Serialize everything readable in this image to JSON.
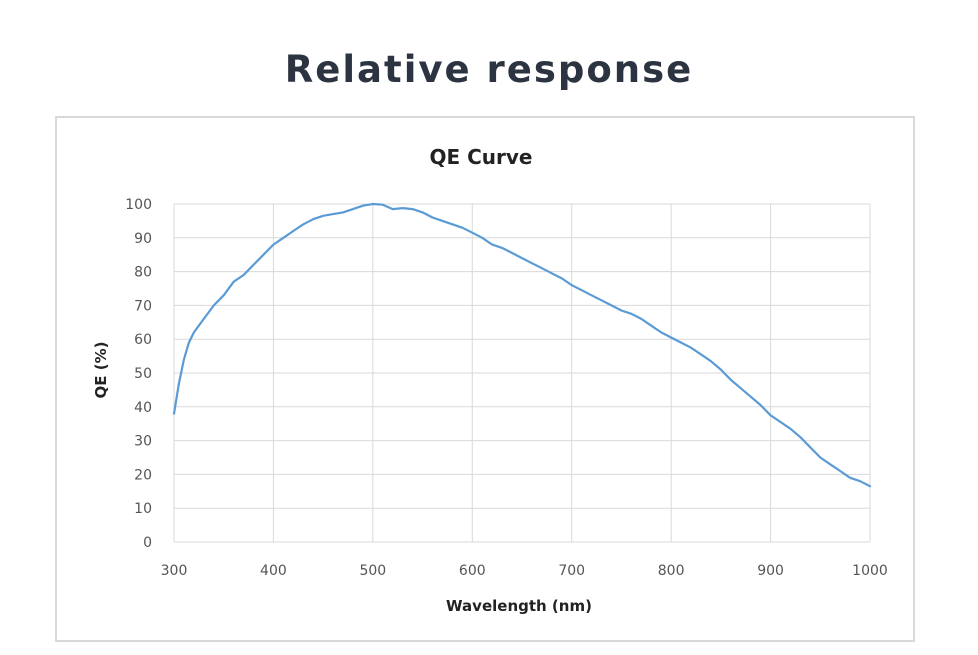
{
  "page": {
    "heading": "Relative response"
  },
  "chart_data": {
    "type": "line",
    "title": "QE Curve",
    "xlabel": "Wavelength (nm)",
    "ylabel": "QE (%)",
    "xlim": [
      300,
      1000
    ],
    "ylim": [
      0,
      100
    ],
    "xticks": [
      300,
      400,
      500,
      600,
      700,
      800,
      900,
      1000
    ],
    "yticks": [
      0,
      10,
      20,
      30,
      40,
      50,
      60,
      70,
      80,
      90,
      100
    ],
    "grid": true,
    "colors": {
      "line": "#5b9bd5",
      "grid": "#d9d9d9"
    },
    "series": [
      {
        "x": [
          300,
          305,
          310,
          315,
          320,
          330,
          340,
          350,
          360,
          370,
          380,
          390,
          400,
          410,
          420,
          430,
          440,
          450,
          460,
          470,
          480,
          490,
          500,
          510,
          520,
          530,
          540,
          550,
          560,
          570,
          580,
          590,
          600,
          610,
          620,
          630,
          640,
          650,
          660,
          670,
          680,
          690,
          700,
          710,
          720,
          730,
          740,
          750,
          760,
          770,
          780,
          790,
          800,
          810,
          820,
          830,
          840,
          850,
          860,
          870,
          880,
          890,
          900,
          910,
          920,
          930,
          940,
          950,
          960,
          970,
          980,
          990,
          1000
        ],
        "y": [
          38,
          47,
          54,
          59,
          62,
          66,
          70,
          73,
          77,
          79,
          82,
          85,
          88,
          90,
          92,
          94,
          95.5,
          96.5,
          97,
          97.5,
          98.5,
          99.5,
          100,
          99.8,
          98.5,
          98.8,
          98.5,
          97.5,
          96,
          95,
          94,
          93,
          91.5,
          90,
          88,
          87,
          85.5,
          84,
          82.5,
          81,
          79.5,
          78,
          76,
          74.5,
          73,
          71.5,
          70,
          68.5,
          67.5,
          66,
          64,
          62,
          60.5,
          59,
          57.5,
          55.5,
          53.5,
          51,
          48,
          45.5,
          43,
          40.5,
          37.5,
          35.5,
          33.5,
          31,
          28,
          25,
          23,
          21,
          19,
          18,
          16.5
        ]
      }
    ]
  }
}
